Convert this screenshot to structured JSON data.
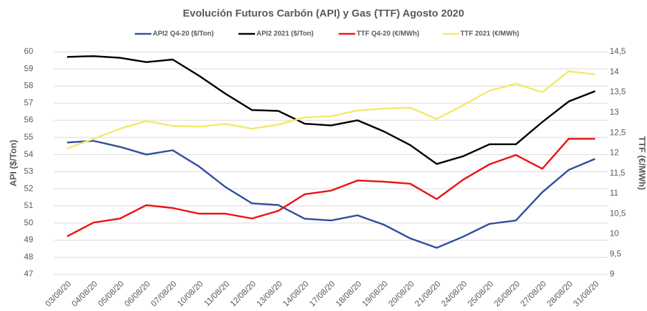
{
  "chart_data": {
    "type": "line",
    "title": "Evolución Futuros Carbón (API) y Gas (TTF) Agosto 2020",
    "y_label": "API ($/Ton)",
    "y2_label": "TTF (€/MWh)",
    "categories": [
      "03/08/20",
      "04/08/20",
      "05/08/20",
      "06/08/20",
      "07/08/20",
      "10/08/20",
      "11/08/20",
      "12/08/20",
      "13/08/20",
      "14/08/20",
      "17/08/20",
      "18/08/20",
      "19/08/20",
      "20/08/20",
      "21/08/20",
      "24/08/20",
      "25/08/20",
      "26/08/20",
      "27/08/20",
      "28/08/20",
      "31/08/20"
    ],
    "series": [
      {
        "name": "API2 Q4-20 ($/Ton)",
        "color": "#2f4f9f",
        "values": [
          54.7,
          54.8,
          54.45,
          54.0,
          54.25,
          53.3,
          52.1,
          51.15,
          51.05,
          50.25,
          50.15,
          50.45,
          49.9,
          49.1,
          48.55,
          49.2,
          49.95,
          50.15,
          51.8,
          53.1,
          53.75
        ]
      },
      {
        "name": "API2 2021 ($/Ton)",
        "color": "#000000",
        "values": [
          59.7,
          59.75,
          59.65,
          59.4,
          59.55,
          58.6,
          57.55,
          56.6,
          56.55,
          55.8,
          55.7,
          56.0,
          55.35,
          54.55,
          53.45,
          53.9,
          54.6,
          54.6,
          55.9,
          57.1,
          57.7
        ]
      },
      {
        "name": "TTF Q4-20 (€/MWh)",
        "color": "#ee1111",
        "axis": "y2",
        "values": [
          9.94,
          10.28,
          10.38,
          10.71,
          10.64,
          10.5,
          10.5,
          10.38,
          10.57,
          10.98,
          11.07,
          11.32,
          11.29,
          11.24,
          10.86,
          11.34,
          11.72,
          11.95,
          11.61,
          12.35,
          12.35
        ]
      },
      {
        "name": "TTF 2021 (€/MWh)",
        "color": "#f2ea6a",
        "axis": "y2",
        "values": [
          12.11,
          12.35,
          12.6,
          12.79,
          12.67,
          12.65,
          12.72,
          12.6,
          12.7,
          12.88,
          12.91,
          13.05,
          13.1,
          13.12,
          12.84,
          13.18,
          13.54,
          13.71,
          13.5,
          14.02,
          13.94
        ]
      }
    ],
    "ylim": [
      47,
      60
    ],
    "yticks": [
      47,
      48,
      49,
      50,
      51,
      52,
      53,
      54,
      55,
      56,
      57,
      58,
      59,
      60
    ],
    "y2lim": [
      9,
      14.5
    ],
    "y2ticks": [
      9,
      {
        "value": 9.5,
        "label": "9,5"
      },
      10,
      {
        "value": 10.5,
        "label": "10,5"
      },
      11,
      {
        "value": 11.5,
        "label": "11,5"
      },
      12,
      {
        "value": 12.5,
        "label": "12,5"
      },
      13,
      {
        "value": 13.5,
        "label": "13,5"
      },
      14,
      {
        "value": 14.5,
        "label": "14,5"
      }
    ],
    "grid": true
  }
}
